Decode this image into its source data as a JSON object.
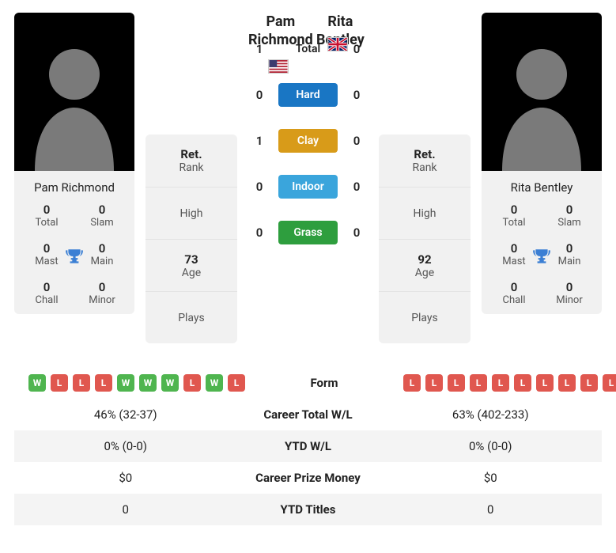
{
  "colors": {
    "win": "#4fb54f",
    "loss": "#e0574f",
    "hard": "#1976c4",
    "clay": "#d89b19",
    "indoor": "#3aa5dc",
    "grass": "#2e9e3e",
    "trophy": "#3b7fd4",
    "card_bg": "#f1f1f1",
    "row_alt": "#f4f4f4"
  },
  "players": {
    "left": {
      "name": "Pam Richmond",
      "country": "US",
      "rank_label": "Ret.",
      "rank_sub": "Rank",
      "high": "",
      "high_label": "High",
      "age": "73",
      "age_label": "Age",
      "plays": "",
      "plays_label": "Plays",
      "titles": {
        "total": {
          "value": "0",
          "label": "Total"
        },
        "slam": {
          "value": "0",
          "label": "Slam"
        },
        "mast": {
          "value": "0",
          "label": "Mast"
        },
        "main": {
          "value": "0",
          "label": "Main"
        },
        "chall": {
          "value": "0",
          "label": "Chall"
        },
        "minor": {
          "value": "0",
          "label": "Minor"
        }
      },
      "form": [
        "W",
        "L",
        "L",
        "L",
        "W",
        "W",
        "W",
        "L",
        "W",
        "L"
      ]
    },
    "right": {
      "name": "Rita Bentley",
      "country": "GB",
      "rank_label": "Ret.",
      "rank_sub": "Rank",
      "high": "",
      "high_label": "High",
      "age": "92",
      "age_label": "Age",
      "plays": "",
      "plays_label": "Plays",
      "titles": {
        "total": {
          "value": "0",
          "label": "Total"
        },
        "slam": {
          "value": "0",
          "label": "Slam"
        },
        "mast": {
          "value": "0",
          "label": "Mast"
        },
        "main": {
          "value": "0",
          "label": "Main"
        },
        "chall": {
          "value": "0",
          "label": "Chall"
        },
        "minor": {
          "value": "0",
          "label": "Minor"
        }
      },
      "form": [
        "L",
        "L",
        "L",
        "L",
        "L",
        "L",
        "L",
        "L",
        "L",
        "L"
      ]
    }
  },
  "h2h": {
    "rows": [
      {
        "left": "1",
        "label": "Total",
        "right": "0",
        "kind": "plain"
      },
      {
        "left": "0",
        "label": "Hard",
        "right": "0",
        "kind": "surface",
        "color": "#1976c4"
      },
      {
        "left": "1",
        "label": "Clay",
        "right": "0",
        "kind": "surface",
        "color": "#d89b19"
      },
      {
        "left": "0",
        "label": "Indoor",
        "right": "0",
        "kind": "surface",
        "color": "#3aa5dc"
      },
      {
        "left": "0",
        "label": "Grass",
        "right": "0",
        "kind": "surface",
        "color": "#2e9e3e"
      }
    ]
  },
  "compare": {
    "form_label": "Form",
    "rows": [
      {
        "left": "46% (32-37)",
        "label": "Career Total W/L",
        "right": "63% (402-233)"
      },
      {
        "left": "0% (0-0)",
        "label": "YTD W/L",
        "right": "0% (0-0)"
      },
      {
        "left": "$0",
        "label": "Career Prize Money",
        "right": "$0"
      },
      {
        "left": "0",
        "label": "YTD Titles",
        "right": "0"
      }
    ]
  }
}
